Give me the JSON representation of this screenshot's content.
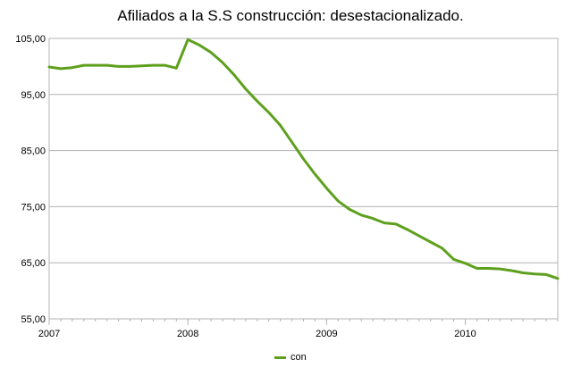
{
  "chart_data": {
    "type": "line",
    "title": "Afiliados a la S.S construcción: desestacionalizado.",
    "xlabel": "",
    "ylabel": "",
    "ylim": [
      55,
      105
    ],
    "yticks": [
      "55,00",
      "65,00",
      "75,00",
      "85,00",
      "95,00",
      "105,00"
    ],
    "xtick_labels": [
      "2007",
      "2008",
      "2009",
      "2010"
    ],
    "grid": true,
    "legend": "bottom-center",
    "series_color": "#5ea01e",
    "series": [
      {
        "name": "con",
        "x": [
          "2007-01",
          "2007-02",
          "2007-03",
          "2007-04",
          "2007-05",
          "2007-06",
          "2007-07",
          "2007-08",
          "2007-09",
          "2007-10",
          "2007-11",
          "2007-12",
          "2008-01",
          "2008-02",
          "2008-03",
          "2008-04",
          "2008-05",
          "2008-06",
          "2008-07",
          "2008-08",
          "2008-09",
          "2008-10",
          "2008-11",
          "2008-12",
          "2009-01",
          "2009-02",
          "2009-03",
          "2009-04",
          "2009-05",
          "2009-06",
          "2009-07",
          "2009-08",
          "2009-09",
          "2009-10",
          "2009-11",
          "2009-12",
          "2010-01",
          "2010-02",
          "2010-03",
          "2010-04",
          "2010-05",
          "2010-06",
          "2010-07",
          "2010-08",
          "2010-09"
        ],
        "values": [
          99.9,
          99.6,
          99.8,
          100.2,
          100.2,
          100.2,
          100.0,
          100.0,
          100.1,
          100.2,
          100.2,
          99.7,
          104.8,
          103.8,
          102.5,
          100.7,
          98.5,
          96.0,
          93.8,
          91.8,
          89.5,
          86.5,
          83.5,
          80.8,
          78.3,
          76.0,
          74.5,
          73.5,
          72.9,
          72.1,
          71.9,
          70.9,
          69.8,
          68.7,
          67.6,
          65.6,
          64.9,
          64.0,
          64.0,
          63.9,
          63.6,
          63.2,
          63.0,
          62.9,
          62.2
        ]
      }
    ]
  }
}
